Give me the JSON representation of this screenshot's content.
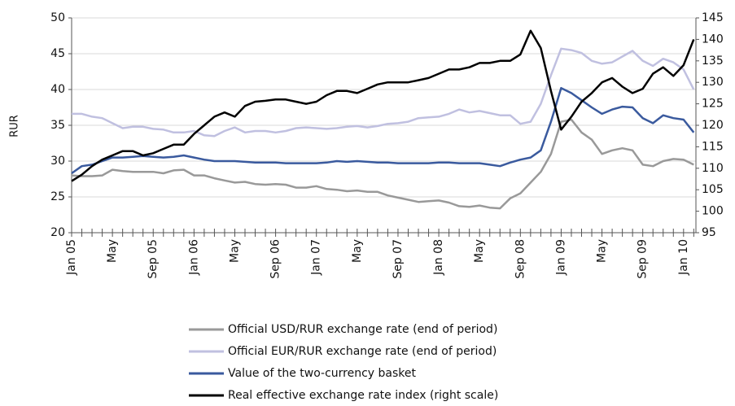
{
  "chart_data": {
    "type": "line",
    "y_label": "RUR",
    "categories": [
      "Jan 05",
      null,
      null,
      null,
      "May",
      null,
      null,
      null,
      "Sep 05",
      null,
      null,
      null,
      "Jan 06",
      null,
      null,
      null,
      "May",
      null,
      null,
      null,
      "Sep 06",
      null,
      null,
      null,
      "Jan 07",
      null,
      null,
      null,
      "May",
      null,
      null,
      null,
      "Sep 07",
      null,
      null,
      null,
      "Jan 08",
      null,
      null,
      null,
      "May",
      null,
      null,
      null,
      "Sep 08",
      null,
      null,
      null,
      "Jan 09",
      null,
      null,
      null,
      "May",
      null,
      null,
      null,
      "Sep 09",
      null,
      null,
      null,
      "Jan 10",
      null
    ],
    "ylim": [
      20,
      50
    ],
    "yticks": [
      20,
      25,
      30,
      35,
      40,
      45,
      50
    ],
    "y2lim": [
      95,
      145
    ],
    "y2ticks": [
      95,
      100,
      105,
      110,
      115,
      120,
      125,
      130,
      135,
      140,
      145
    ],
    "grid": true,
    "series": [
      {
        "name": "Official USD/RUR exchange rate (end of period)",
        "color": "#999999",
        "values": [
          28,
          27.9,
          27.9,
          28,
          28.8,
          28.6,
          28.5,
          28.5,
          28.5,
          28.3,
          28.7,
          28.8,
          28,
          28,
          27.6,
          27.3,
          27,
          27.1,
          26.8,
          26.7,
          26.8,
          26.7,
          26.3,
          26.3,
          26.5,
          26.1,
          26,
          25.8,
          25.9,
          25.7,
          25.7,
          25.2,
          24.9,
          24.6,
          24.3,
          24.4,
          24.5,
          24.2,
          23.7,
          23.6,
          23.8,
          23.5,
          23.4,
          24.8,
          25.5,
          27,
          28.5,
          31,
          35.5,
          35.8,
          34,
          33,
          31,
          31.5,
          31.8,
          31.5,
          29.5,
          29.3,
          30,
          30.3,
          30.2,
          29.5
        ]
      },
      {
        "name": "Official EUR/RUR exchange rate (end of period)",
        "color": "#c0c0e0",
        "values": [
          36.6,
          36.6,
          36.2,
          36,
          35.3,
          34.6,
          34.8,
          34.8,
          34.5,
          34.4,
          34,
          34,
          34.2,
          33.6,
          33.5,
          34.2,
          34.7,
          34,
          34.2,
          34.2,
          34,
          34.2,
          34.6,
          34.7,
          34.6,
          34.5,
          34.6,
          34.8,
          34.9,
          34.7,
          34.9,
          35.2,
          35.3,
          35.5,
          36,
          36.1,
          36.2,
          36.6,
          37.2,
          36.8,
          37,
          36.7,
          36.4,
          36.4,
          35.2,
          35.5,
          38,
          42,
          45.7,
          45.5,
          45.1,
          44,
          43.6,
          43.8,
          44.6,
          45.4,
          44,
          43.3,
          44.3,
          43.8,
          42.8,
          40
        ]
      },
      {
        "name": "Value of the two-currency basket",
        "color": "#3a5a9e",
        "values": [
          28.3,
          29.3,
          29.5,
          30,
          30.5,
          30.5,
          30.6,
          30.7,
          30.6,
          30.5,
          30.6,
          30.8,
          30.5,
          30.2,
          30,
          30,
          30,
          29.9,
          29.8,
          29.8,
          29.8,
          29.7,
          29.7,
          29.7,
          29.7,
          29.8,
          30,
          29.9,
          30,
          29.9,
          29.8,
          29.8,
          29.7,
          29.7,
          29.7,
          29.7,
          29.8,
          29.8,
          29.7,
          29.7,
          29.7,
          29.5,
          29.3,
          29.8,
          30.2,
          30.5,
          31.5,
          35.5,
          40.2,
          39.5,
          38.5,
          37.5,
          36.6,
          37.2,
          37.6,
          37.5,
          36,
          35.3,
          36.4,
          36,
          35.8,
          34
        ]
      },
      {
        "name": "Real effective exchange rate index (right scale)",
        "color": "#000000",
        "axis": "y2",
        "values": [
          107,
          108.5,
          110.5,
          112,
          113,
          114,
          114,
          113,
          113.5,
          114.5,
          115.5,
          115.5,
          118,
          120,
          122,
          123,
          122,
          124.5,
          125.5,
          125.7,
          126,
          126,
          125.5,
          125,
          125.5,
          127,
          128,
          128,
          127.5,
          128.5,
          129.5,
          130,
          130,
          130,
          130.5,
          131,
          132,
          133,
          133,
          133.5,
          134.5,
          134.5,
          135,
          135,
          136.5,
          142,
          138,
          128,
          119,
          122,
          125.5,
          127.5,
          130,
          131,
          129,
          127.5,
          128.5,
          132,
          133.5,
          131.5,
          134,
          140
        ]
      }
    ]
  }
}
